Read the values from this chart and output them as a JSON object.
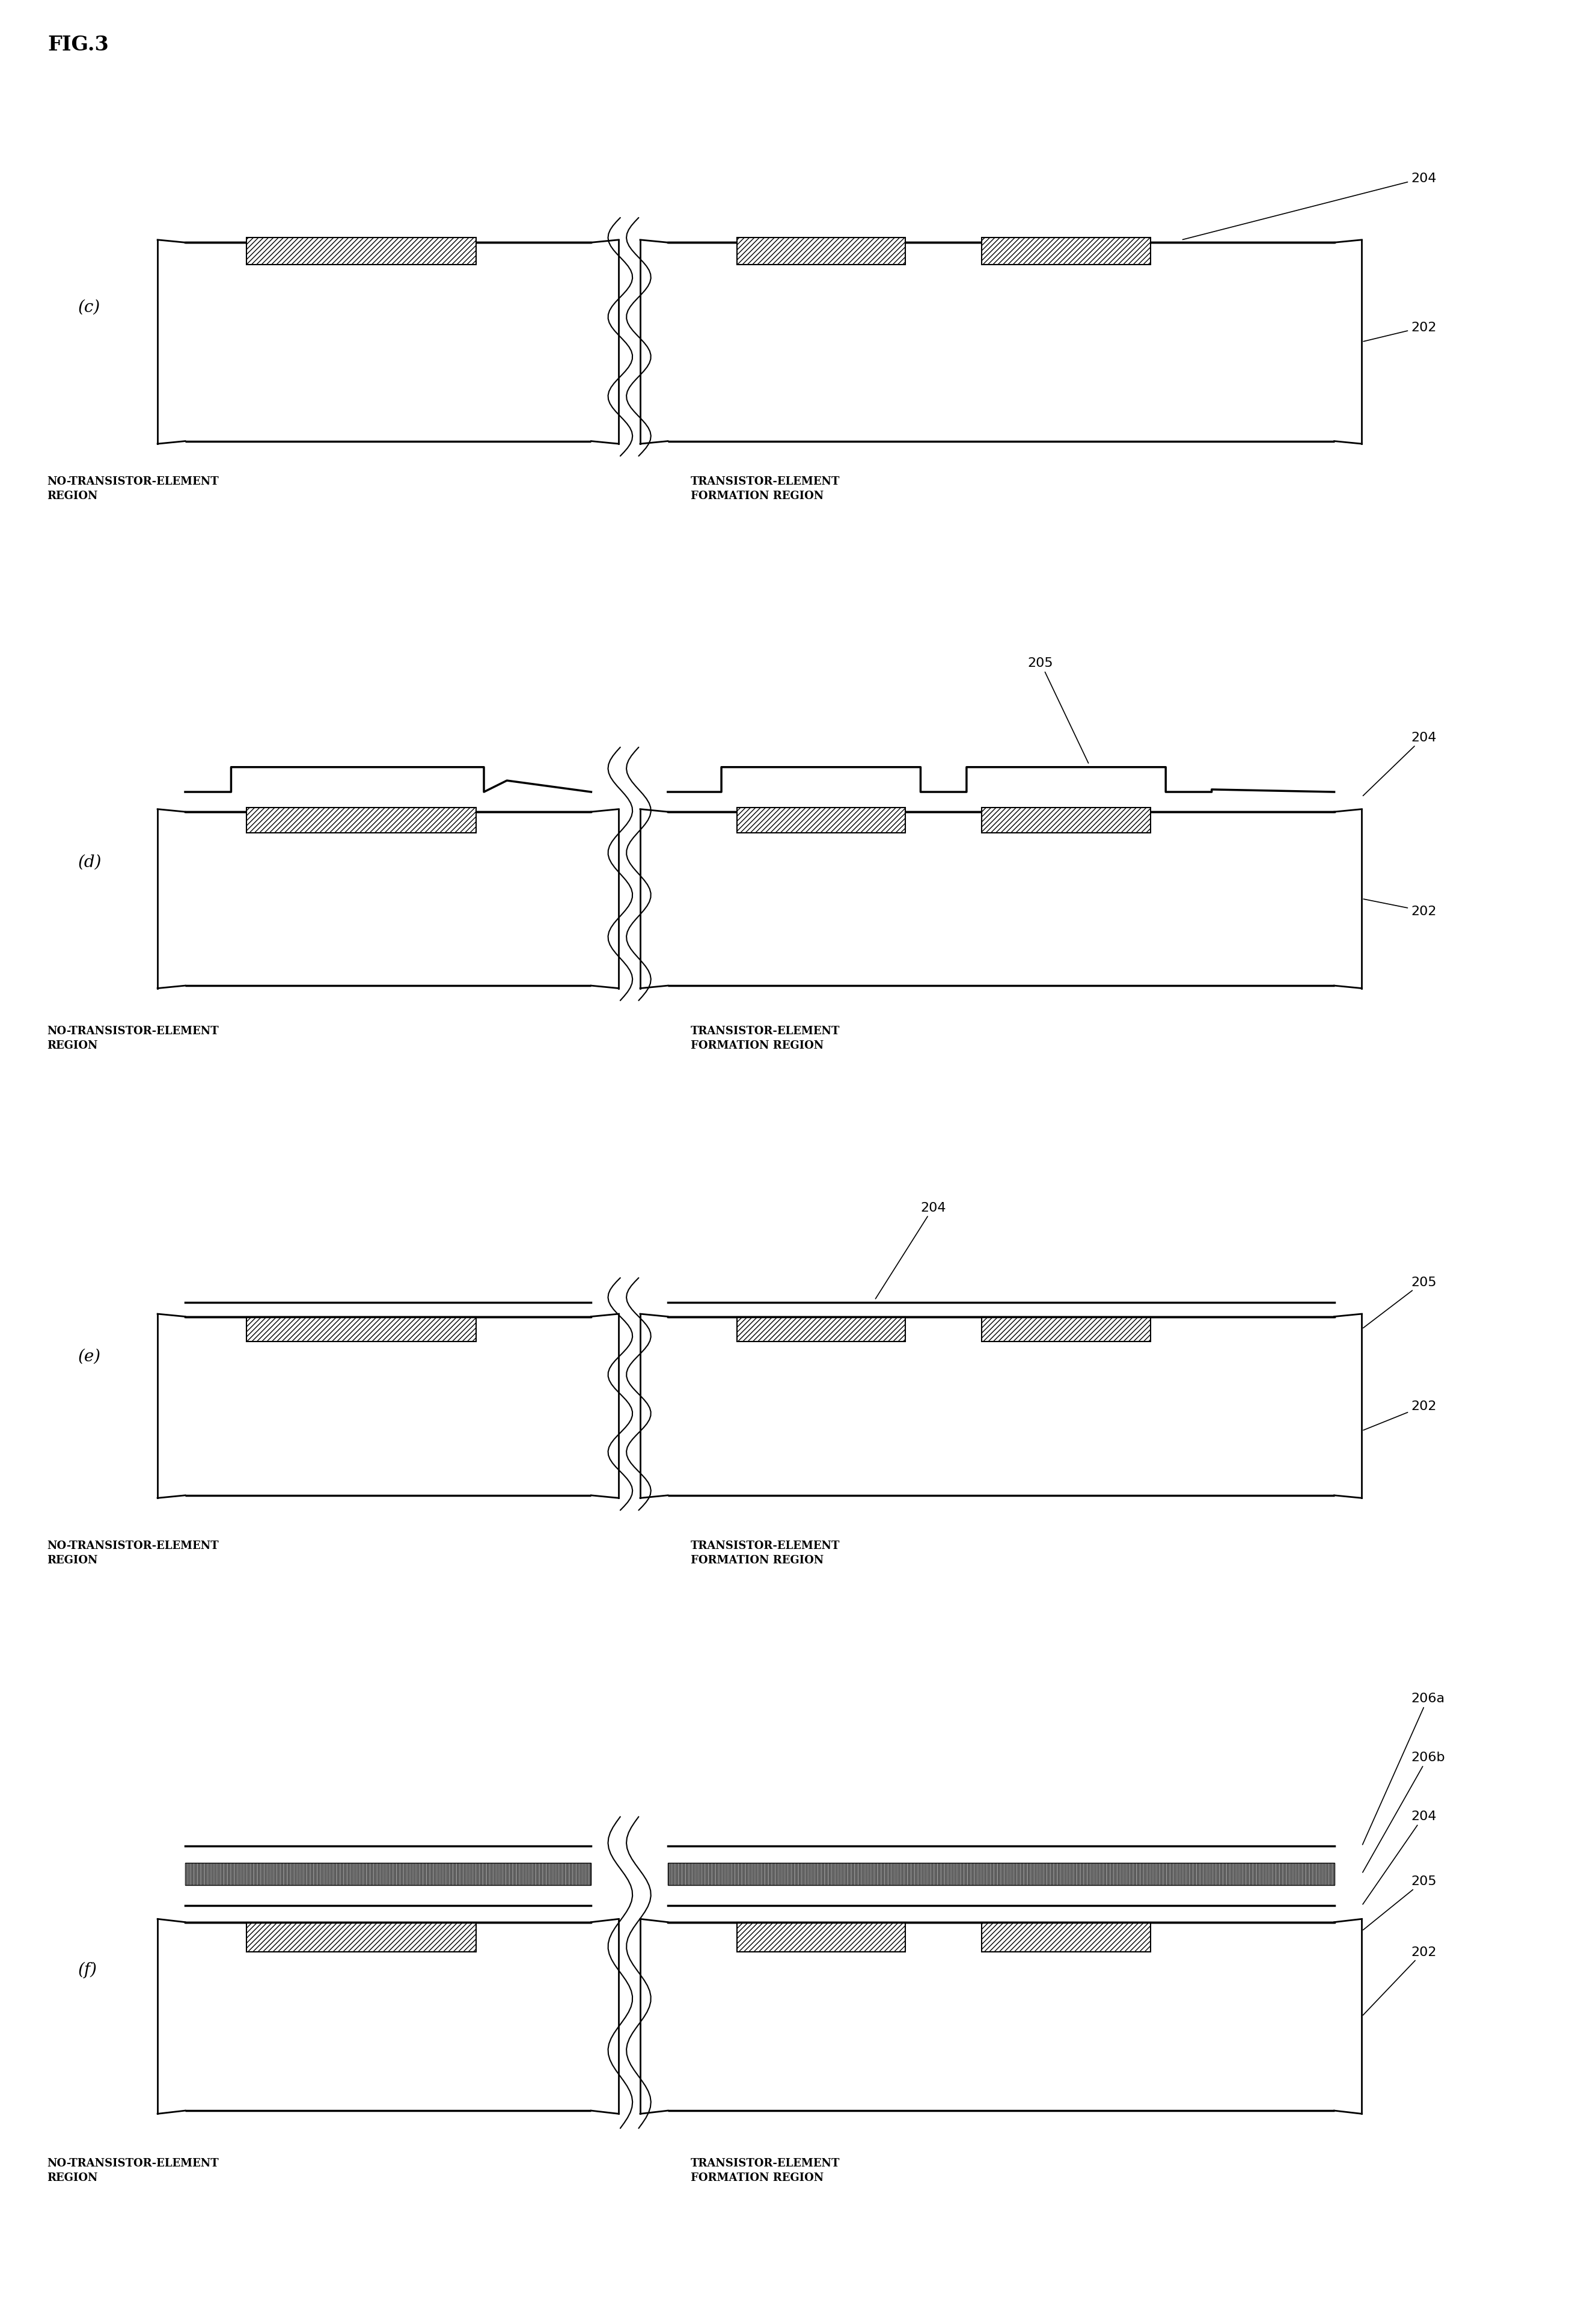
{
  "fig_title": "FIG.3",
  "background_color": "#ffffff",
  "lw_thick": 2.5,
  "lw_thin": 1.5,
  "lw_border": 2.0,
  "panels": [
    "(c)",
    "(d)",
    "(e)",
    "(f)"
  ],
  "label_no_transistor": "NO-TRANSISTOR-ELEMENT\nREGION",
  "label_transistor": "TRANSISTOR-ELEMENT\nFORMATION REGION",
  "fontsize_label": 13,
  "fontsize_panel": 20,
  "fontsize_annot": 16,
  "fontsize_title": 24
}
